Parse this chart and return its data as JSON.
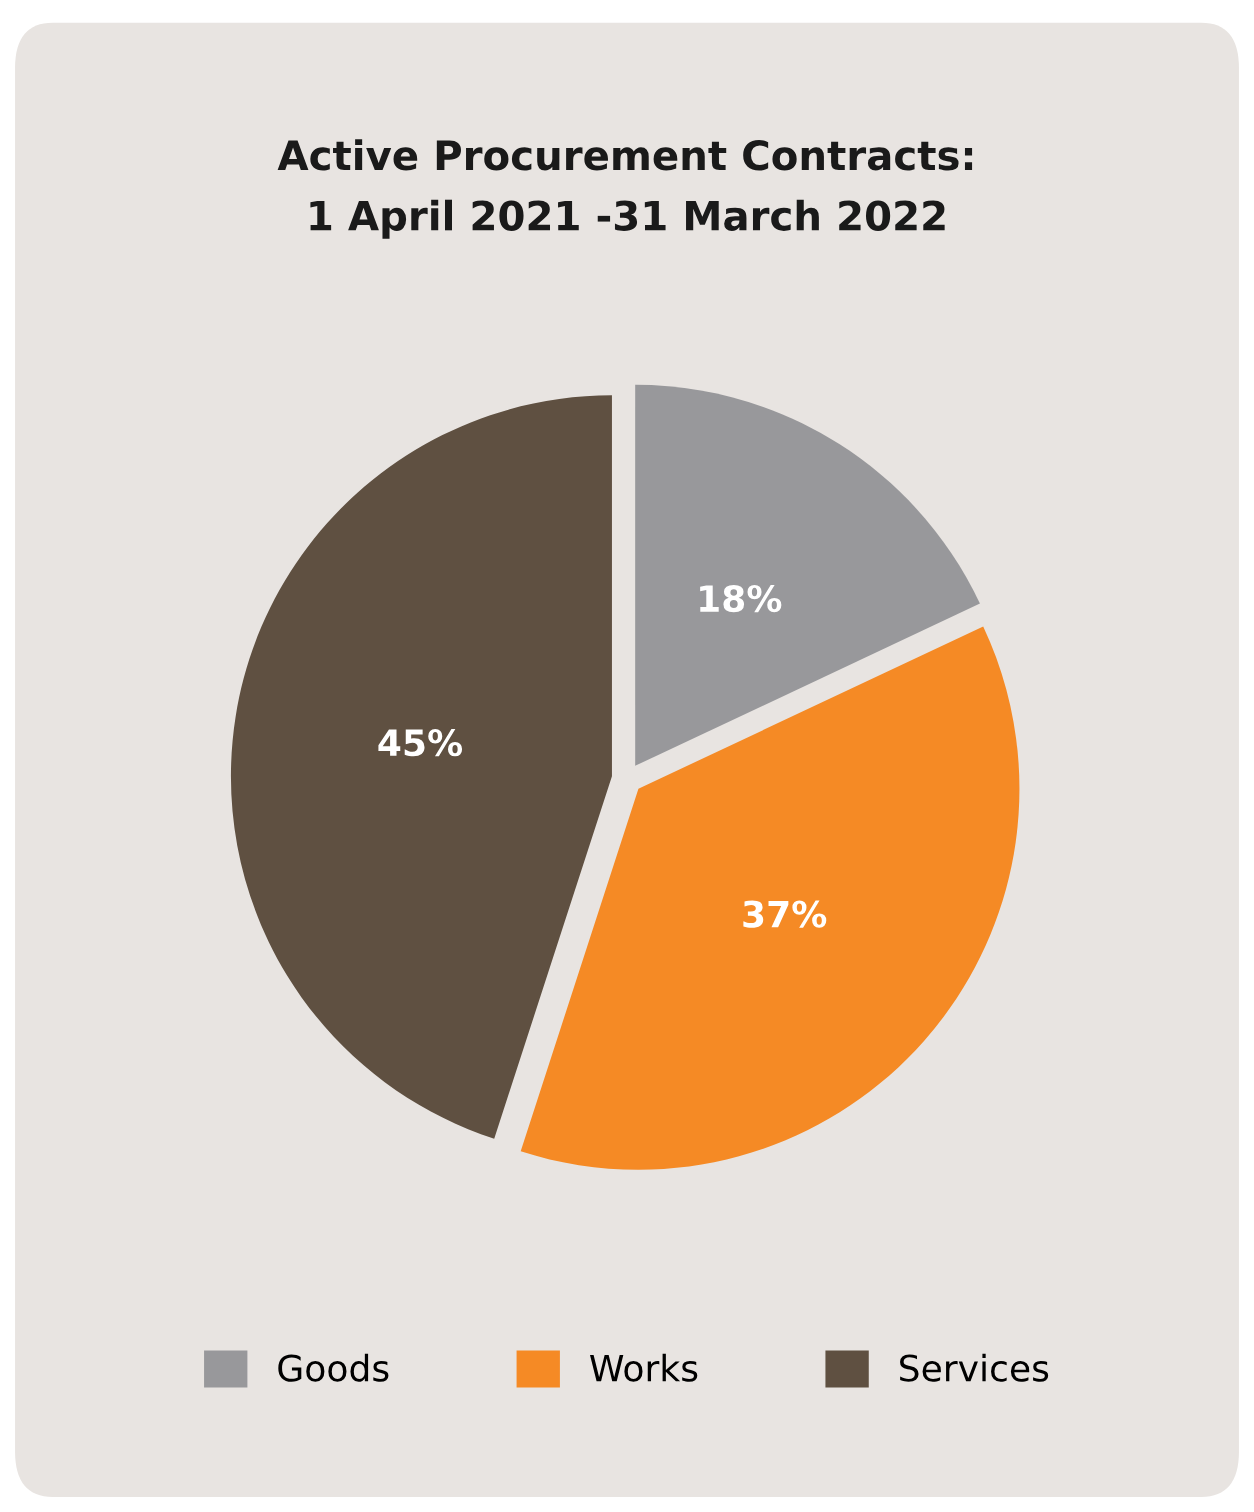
{
  "chart_data": {
    "type": "pie",
    "title": "Active Procurement Contracts:\n1 April 2021 -31 March 2022",
    "categories": [
      "Goods",
      "Works",
      "Services"
    ],
    "values": [
      18,
      37,
      45
    ],
    "colors": [
      "#98989b",
      "#f58a25",
      "#5f5041"
    ],
    "value_labels": [
      "18%",
      "37%",
      "45%"
    ],
    "legend": "bottom"
  }
}
